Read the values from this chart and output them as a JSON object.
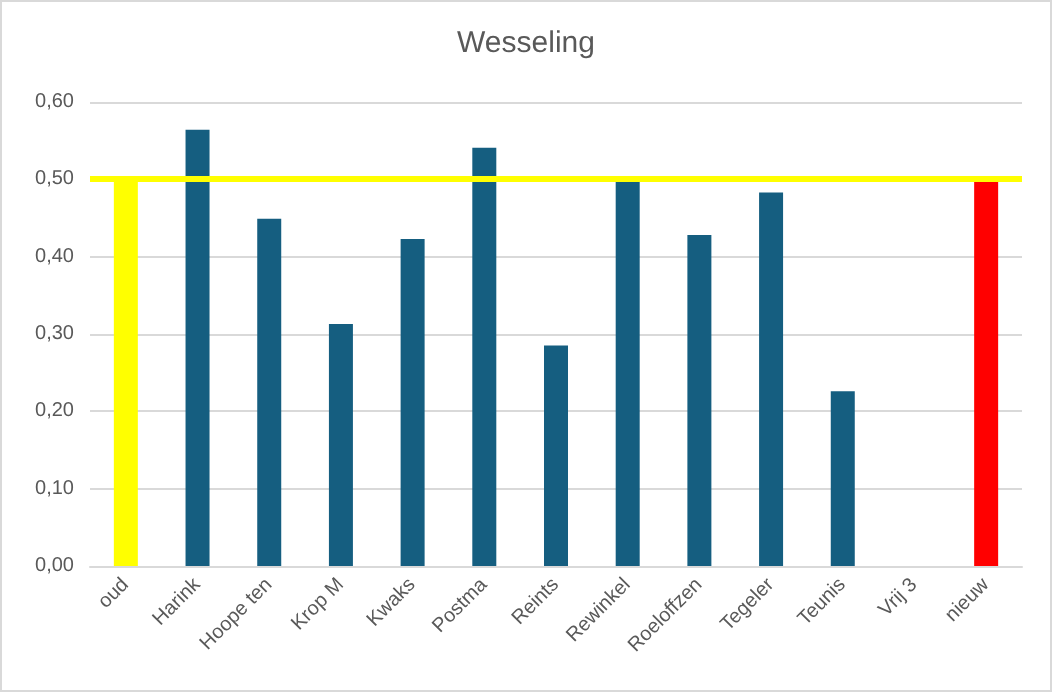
{
  "chart_data": {
    "type": "bar",
    "title": "Wesseling",
    "categories": [
      "oud",
      "Harink",
      "Hoope ten",
      "Krop M",
      "Kwaks",
      "Postma",
      "Reints",
      "Rewinkel",
      "Roeloffzen",
      "Tegeler",
      "Teunis",
      "Vrij 3",
      "nieuw"
    ],
    "values": [
      0.5,
      0.564,
      0.449,
      0.313,
      0.423,
      0.541,
      0.285,
      0.497,
      0.428,
      0.483,
      0.226,
      0,
      0.5
    ],
    "colors": [
      "#ffff00",
      "#155e80",
      "#155e80",
      "#155e80",
      "#155e80",
      "#155e80",
      "#155e80",
      "#155e80",
      "#155e80",
      "#155e80",
      "#155e80",
      "#155e80",
      "#ff0000"
    ],
    "ylim": [
      0,
      0.6
    ],
    "yticks": [
      {
        "value": 0,
        "label": "0,00"
      },
      {
        "value": 0.1,
        "label": "0,10"
      },
      {
        "value": 0.2,
        "label": "0,20"
      },
      {
        "value": 0.3,
        "label": "0,30"
      },
      {
        "value": 0.4,
        "label": "0,40"
      },
      {
        "value": 0.5,
        "label": "0,50"
      },
      {
        "value": 0.6,
        "label": "0,60"
      }
    ],
    "ref_lines": [
      {
        "axis": "y",
        "value": 0.5,
        "color": "#ffff00"
      }
    ],
    "grid": "y"
  }
}
